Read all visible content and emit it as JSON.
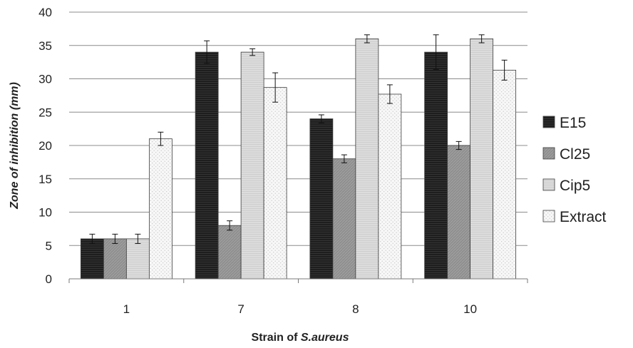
{
  "chart_data": {
    "type": "bar",
    "xlabel_prefix": "Strain of ",
    "xlabel_italic": "S.aureus",
    "ylabel": "Zone of inhibition (mm)",
    "categories": [
      "1",
      "7",
      "8",
      "10"
    ],
    "ylim": [
      0,
      40
    ],
    "yticks": [
      0,
      5,
      10,
      15,
      20,
      25,
      30,
      35,
      40
    ],
    "grid": true,
    "legend_position": "right",
    "series": [
      {
        "name": "E15",
        "values": [
          6,
          34,
          24,
          34
        ],
        "errors": [
          0.7,
          1.7,
          0.6,
          2.6
        ],
        "color": "#1c1c1c",
        "pattern": "dark-lines"
      },
      {
        "name": "Cl25",
        "values": [
          6,
          8,
          18,
          20
        ],
        "errors": [
          0.7,
          0.7,
          0.6,
          0.6
        ],
        "color": "#8e8e8e",
        "pattern": "diagonal"
      },
      {
        "name": "Cip5",
        "values": [
          6,
          34,
          36,
          36
        ],
        "errors": [
          0.7,
          0.5,
          0.6,
          0.6
        ],
        "color": "#dcdcdc",
        "pattern": "light-lines"
      },
      {
        "name": "Extract",
        "values": [
          21,
          28.7,
          27.7,
          31.3
        ],
        "errors": [
          1.0,
          2.2,
          1.4,
          1.5
        ],
        "color": "#f4f4f4",
        "pattern": "dots"
      }
    ]
  }
}
